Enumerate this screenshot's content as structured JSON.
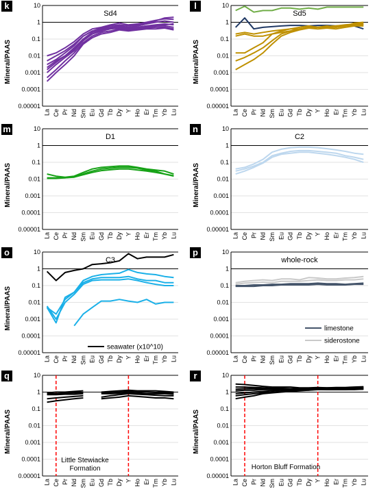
{
  "chart_data": [
    {
      "panel": "k",
      "title": "Sd4",
      "type": "line",
      "categories": [
        "La",
        "Ce",
        "Pr",
        "Nd",
        "Sm",
        "Eu",
        "Gd",
        "Tb",
        "Dy",
        "Y",
        "Ho",
        "Er",
        "Tm",
        "Yb",
        "Lu"
      ],
      "ylabel": "Mineral/PAAS",
      "ylim": [
        1e-05,
        10
      ],
      "yscale": "log",
      "yticks": [
        "0.00001",
        "0.0001",
        "0.001",
        "0.01",
        "0.1",
        "1",
        "10"
      ],
      "color": "#7030a0",
      "series": [
        {
          "values": [
            0.01,
            0.015,
            0.03,
            0.07,
            0.2,
            0.4,
            0.5,
            0.7,
            0.9,
            0.7,
            0.8,
            1.0,
            1.3,
            1.6,
            1.5
          ]
        },
        {
          "values": [
            0.003,
            0.006,
            0.015,
            0.04,
            0.15,
            0.3,
            0.4,
            0.5,
            0.6,
            0.5,
            0.6,
            0.8,
            1.0,
            1.2,
            1.0
          ]
        },
        {
          "values": [
            0.0015,
            0.004,
            0.01,
            0.03,
            0.1,
            0.25,
            0.35,
            0.45,
            0.5,
            0.45,
            0.5,
            0.6,
            0.7,
            0.8,
            0.7
          ]
        },
        {
          "values": [
            0.001,
            0.003,
            0.008,
            0.02,
            0.08,
            0.2,
            0.3,
            0.4,
            0.45,
            0.4,
            0.45,
            0.5,
            0.6,
            0.6,
            0.5
          ]
        },
        {
          "values": [
            0.0005,
            0.0015,
            0.005,
            0.015,
            0.06,
            0.15,
            0.25,
            0.3,
            0.4,
            0.35,
            0.4,
            0.45,
            0.5,
            0.5,
            0.4
          ]
        },
        {
          "values": [
            0.0003,
            0.001,
            0.003,
            0.01,
            0.05,
            0.12,
            0.2,
            0.25,
            0.35,
            0.3,
            0.35,
            0.4,
            0.4,
            0.45,
            0.35
          ]
        },
        {
          "values": [
            0.005,
            0.01,
            0.02,
            0.05,
            0.15,
            0.3,
            0.45,
            0.6,
            0.7,
            0.6,
            0.7,
            0.9,
            1.2,
            1.8,
            2.0
          ]
        },
        {
          "values": [
            0.002,
            0.005,
            0.01,
            0.025,
            0.1,
            0.2,
            0.3,
            0.4,
            0.5,
            0.5,
            0.5,
            0.6,
            0.6,
            0.7,
            0.8
          ]
        }
      ]
    },
    {
      "panel": "l",
      "title": "Sd5",
      "type": "line",
      "categories": [
        "La",
        "Ce",
        "Pr",
        "Nd",
        "Sm",
        "Eu",
        "Gd",
        "Tb",
        "Dy",
        "Y",
        "Ho",
        "Er",
        "Tm",
        "Yb",
        "Lu"
      ],
      "ylabel": "Mineral/PAAS",
      "ylim": [
        1e-05,
        10
      ],
      "yscale": "log",
      "yticks": [
        "0.00001",
        "0.0001",
        "0.001",
        "0.01",
        "0.1",
        "1",
        "10"
      ],
      "series": [
        {
          "color": "#70ad47",
          "values": [
            5,
            9,
            4,
            5,
            5,
            7,
            7,
            6,
            7,
            6,
            8,
            8,
            8,
            8,
            8
          ]
        },
        {
          "color": "#1f3864",
          "values": [
            0.5,
            1.8,
            0.4,
            0.5,
            0.55,
            0.6,
            0.65,
            0.65,
            0.6,
            0.65,
            0.65,
            0.6,
            0.65,
            0.6,
            0.4
          ]
        },
        {
          "color": "#bf9000",
          "values": [
            0.2,
            0.25,
            0.2,
            0.25,
            0.3,
            0.35,
            0.4,
            0.4,
            0.45,
            0.5,
            0.55,
            0.6,
            0.65,
            0.7,
            0.7
          ]
        },
        {
          "color": "#bf9000",
          "values": [
            0.15,
            0.2,
            0.15,
            0.15,
            0.2,
            0.25,
            0.3,
            0.4,
            0.5,
            0.5,
            0.55,
            0.6,
            0.7,
            0.8,
            0.9
          ]
        },
        {
          "color": "#bf9000",
          "values": [
            0.015,
            0.015,
            0.03,
            0.06,
            0.2,
            0.3,
            0.4,
            0.5,
            0.6,
            0.5,
            0.6,
            0.5,
            0.6,
            0.9,
            1.0
          ]
        },
        {
          "color": "#bf9000",
          "values": [
            0.005,
            0.008,
            0.015,
            0.03,
            0.08,
            0.2,
            0.3,
            0.4,
            0.5,
            0.5,
            0.5,
            0.5,
            0.6,
            0.7,
            0.8
          ]
        },
        {
          "color": "#bf9000",
          "values": [
            0.0015,
            0.003,
            0.006,
            0.015,
            0.05,
            0.15,
            0.25,
            0.35,
            0.45,
            0.4,
            0.45,
            0.4,
            0.5,
            0.6,
            0.6
          ]
        }
      ]
    },
    {
      "panel": "m",
      "title": "D1",
      "type": "line",
      "categories": [
        "La",
        "Ce",
        "Pr",
        "Nd",
        "Sm",
        "Eu",
        "Gd",
        "Tb",
        "Dy",
        "Y",
        "Ho",
        "Er",
        "Tm",
        "Yb",
        "Lu"
      ],
      "ylabel": "Mineral/PAAS",
      "ylim": [
        1e-05,
        10
      ],
      "yscale": "log",
      "yticks": [
        "0.00001",
        "0.0001",
        "0.001",
        "0.01",
        "0.1",
        "1",
        "10"
      ],
      "color": "#16a216",
      "series": [
        {
          "values": [
            0.02,
            0.015,
            0.013,
            0.015,
            0.025,
            0.04,
            0.05,
            0.055,
            0.06,
            0.06,
            0.05,
            0.04,
            0.035,
            0.03,
            0.02
          ]
        },
        {
          "values": [
            0.012,
            0.012,
            0.012,
            0.014,
            0.02,
            0.03,
            0.04,
            0.045,
            0.05,
            0.05,
            0.045,
            0.035,
            0.03,
            0.02,
            0.015
          ]
        },
        {
          "values": [
            0.011,
            0.011,
            0.012,
            0.013,
            0.018,
            0.025,
            0.032,
            0.036,
            0.04,
            0.04,
            0.035,
            0.03,
            0.025,
            0.02,
            0.016
          ]
        }
      ]
    },
    {
      "panel": "n",
      "title": "C2",
      "type": "line",
      "categories": [
        "La",
        "Ce",
        "Pr",
        "Nd",
        "Sm",
        "Eu",
        "Gd",
        "Tb",
        "Dy",
        "Y",
        "Ho",
        "Er",
        "Tm",
        "Yb",
        "Lu"
      ],
      "ylabel": "Mineral/PAAS",
      "ylim": [
        1e-05,
        10
      ],
      "yscale": "log",
      "yticks": [
        "0.00001",
        "0.0001",
        "0.001",
        "0.01",
        "0.1",
        "1",
        "10"
      ],
      "color": "#bdd7ee",
      "series": [
        {
          "values": [
            0.04,
            0.05,
            0.08,
            0.15,
            0.4,
            0.6,
            0.75,
            0.8,
            0.8,
            0.75,
            0.65,
            0.55,
            0.45,
            0.35,
            0.3
          ]
        },
        {
          "values": [
            0.03,
            0.04,
            0.06,
            0.1,
            0.25,
            0.35,
            0.45,
            0.5,
            0.5,
            0.45,
            0.4,
            0.35,
            0.25,
            0.2,
            0.15
          ]
        },
        {
          "values": [
            0.02,
            0.03,
            0.05,
            0.09,
            0.2,
            0.3,
            0.35,
            0.4,
            0.4,
            0.35,
            0.3,
            0.25,
            0.2,
            0.15,
            0.1
          ]
        }
      ]
    },
    {
      "panel": "o",
      "title": "C3",
      "type": "line",
      "categories": [
        "La",
        "Ce",
        "Pr",
        "Nd",
        "Sm",
        "Eu",
        "Gd",
        "Tb",
        "Dy",
        "Y",
        "Ho",
        "Er",
        "Tm",
        "Yb",
        "Lu"
      ],
      "ylabel": "Mineral/PAAS",
      "ylim": [
        1e-05,
        10
      ],
      "yscale": "log",
      "yticks": [
        "0.00001",
        "0.0001",
        "0.001",
        "0.01",
        "0.1",
        "1",
        "10"
      ],
      "legend": {
        "label": "seawater (x10^10)",
        "color": "#000000",
        "placement": "bottom-right"
      },
      "series": [
        {
          "color": "#000000",
          "values": [
            0.7,
            0.2,
            0.6,
            0.8,
            1.0,
            1.8,
            2.0,
            2.3,
            3.0,
            8.0,
            4.0,
            5.0,
            5.0,
            5.0,
            7.0
          ]
        },
        {
          "color": "#1ab0e8",
          "values": [
            0.005,
            0.002,
            0.015,
            0.04,
            0.2,
            0.35,
            0.45,
            0.5,
            0.55,
            0.9,
            0.6,
            0.5,
            0.45,
            0.35,
            0.3
          ]
        },
        {
          "color": "#1ab0e8",
          "values": [
            0.005,
            0.0006,
            0.02,
            0.04,
            0.15,
            0.25,
            0.3,
            0.3,
            0.3,
            0.35,
            0.25,
            0.2,
            0.2,
            0.15,
            0.15
          ]
        },
        {
          "color": "#1ab0e8",
          "values": [
            0.006,
            0.001,
            0.01,
            0.03,
            0.12,
            0.2,
            0.22,
            0.22,
            0.22,
            0.25,
            0.2,
            0.15,
            0.12,
            0.1,
            0.1
          ]
        },
        {
          "color": "#1ab0e8",
          "values": [
            null,
            null,
            null,
            0.0004,
            0.002,
            0.005,
            0.012,
            0.012,
            0.015,
            0.012,
            0.01,
            0.015,
            0.008,
            0.01,
            0.01
          ]
        }
      ]
    },
    {
      "panel": "p",
      "title": "whole-rock",
      "type": "line",
      "categories": [
        "La",
        "Ce",
        "Pr",
        "Nd",
        "Sm",
        "Eu",
        "Gd",
        "Tb",
        "Dy",
        "Y",
        "Ho",
        "Er",
        "Tm",
        "Yb",
        "Lu"
      ],
      "ylabel": "",
      "ylim": [
        1e-05,
        10
      ],
      "yscale": "log",
      "yticks": [
        "0.00001",
        "0.0001",
        "0.001",
        "0.01",
        "0.1",
        "1",
        "10"
      ],
      "legend": [
        {
          "label": "limestone",
          "color": "#44546a"
        },
        {
          "label": "siderostone",
          "color": "#c9c9c9"
        }
      ],
      "series": [
        {
          "name": "limestone",
          "color": "#44546a",
          "values": [
            0.1,
            0.1,
            0.11,
            0.11,
            0.12,
            0.12,
            0.13,
            0.13,
            0.13,
            0.14,
            0.13,
            0.13,
            0.12,
            0.13,
            0.14
          ]
        },
        {
          "name": "limestone",
          "color": "#44546a",
          "values": [
            0.09,
            0.09,
            0.09,
            0.1,
            0.1,
            0.11,
            0.11,
            0.11,
            0.11,
            0.12,
            0.11,
            0.11,
            0.11,
            0.12,
            0.12
          ]
        },
        {
          "name": "siderostone",
          "color": "#c9c9c9",
          "values": [
            0.15,
            0.18,
            0.2,
            0.22,
            0.2,
            0.25,
            0.25,
            0.22,
            0.3,
            0.28,
            0.25,
            0.25,
            0.28,
            0.3,
            0.35
          ]
        },
        {
          "name": "siderostone",
          "color": "#c9c9c9",
          "values": [
            0.12,
            0.14,
            0.15,
            0.16,
            0.15,
            0.18,
            0.18,
            0.18,
            0.2,
            0.22,
            0.2,
            0.2,
            0.22,
            0.22,
            0.25
          ]
        }
      ]
    },
    {
      "panel": "q",
      "type": "line",
      "categories": [
        "La",
        "Ce",
        "Pr",
        "Nd",
        "Sm",
        "Eu",
        "Gd",
        "Tb",
        "Dy",
        "Y",
        "Ho",
        "Er",
        "Tm",
        "Yb",
        "Lu"
      ],
      "ylabel": "Mineral/PAAS",
      "ylim": [
        1e-05,
        10
      ],
      "yscale": "log",
      "yticks": [
        "0.00001",
        "0.0001",
        "0.001",
        "0.01",
        "0.1",
        "1",
        "10"
      ],
      "color": "#000000",
      "annotation": [
        "Little Stewiacke",
        "Formation"
      ],
      "vlines": [
        "Ce",
        "Y"
      ],
      "series": [
        {
          "values": [
            0.9,
            1.0,
            1.0,
            1.1,
            1.2,
            null,
            1.0,
            1.1,
            1.2,
            1.3,
            1.2,
            1.2,
            1.2,
            1.1,
            1.0
          ]
        },
        {
          "values": [
            0.8,
            0.8,
            0.85,
            0.9,
            0.95,
            null,
            0.9,
            0.95,
            1.0,
            1.1,
            1.0,
            1.0,
            0.95,
            0.9,
            0.9
          ]
        },
        {
          "values": [
            0.7,
            0.7,
            0.75,
            0.75,
            0.8,
            null,
            0.8,
            0.8,
            0.85,
            0.9,
            0.85,
            0.8,
            0.8,
            0.8,
            0.75
          ]
        },
        {
          "values": [
            0.4,
            0.45,
            0.5,
            0.55,
            0.6,
            null,
            0.5,
            0.6,
            0.7,
            0.8,
            0.75,
            0.7,
            0.65,
            0.6,
            0.6
          ]
        },
        {
          "values": [
            0.25,
            0.3,
            0.35,
            0.4,
            0.45,
            null,
            0.4,
            0.45,
            0.5,
            0.6,
            0.55,
            0.5,
            0.45,
            0.45,
            0.4
          ]
        }
      ]
    },
    {
      "panel": "r",
      "type": "line",
      "categories": [
        "La",
        "Ce",
        "Pr",
        "Nd",
        "Sm",
        "Eu",
        "Gd",
        "Tb",
        "Dy",
        "Y",
        "Ho",
        "Er",
        "Tm",
        "Yb",
        "Lu"
      ],
      "ylabel": "Mineral/PAAS",
      "ylim": [
        1e-05,
        10
      ],
      "yscale": "log",
      "yticks": [
        "0.00001",
        "0.0001",
        "0.001",
        "0.01",
        "0.1",
        "1",
        "10"
      ],
      "color": "#000000",
      "annotation": [
        "Horton Bluff Formation"
      ],
      "vlines": [
        "Ce",
        "Y"
      ],
      "series": [
        {
          "values": [
            3.0,
            2.8,
            2.5,
            2.2,
            2.0,
            2.0,
            2.0,
            1.8,
            1.8,
            1.9,
            1.8,
            1.8,
            1.8,
            1.9,
            2.0
          ]
        },
        {
          "values": [
            2.0,
            2.0,
            1.9,
            1.8,
            1.7,
            1.7,
            1.6,
            1.6,
            1.6,
            1.8,
            1.7,
            1.7,
            1.7,
            1.8,
            1.8
          ]
        },
        {
          "values": [
            1.2,
            1.3,
            1.3,
            1.4,
            1.4,
            1.5,
            1.5,
            1.5,
            1.5,
            1.7,
            1.6,
            1.6,
            1.6,
            1.7,
            1.7
          ]
        },
        {
          "values": [
            0.8,
            0.9,
            1.0,
            1.1,
            1.2,
            1.3,
            1.3,
            1.4,
            1.4,
            1.6,
            1.5,
            1.5,
            1.5,
            1.6,
            1.6
          ]
        },
        {
          "values": [
            0.6,
            0.7,
            0.8,
            0.9,
            1.0,
            1.1,
            1.2,
            1.3,
            1.3,
            1.5,
            1.4,
            1.4,
            1.4,
            1.5,
            1.5
          ]
        },
        {
          "values": [
            0.4,
            0.5,
            0.6,
            0.8,
            0.9,
            1.0,
            1.1,
            1.2,
            1.3,
            1.4,
            1.4,
            1.4,
            1.4,
            1.4,
            1.5
          ]
        },
        {
          "values": [
            1.5,
            1.6,
            1.6,
            1.6,
            1.6,
            1.6,
            1.6,
            1.6,
            1.7,
            1.8,
            1.8,
            1.9,
            1.9,
            2.0,
            2.1
          ]
        }
      ]
    }
  ]
}
